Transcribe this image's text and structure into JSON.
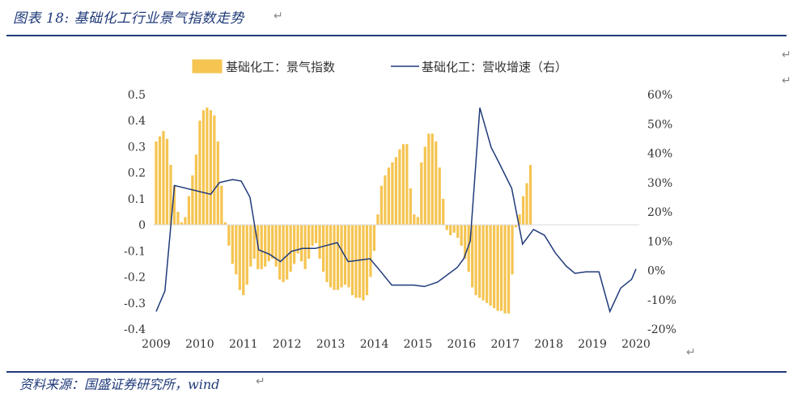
{
  "header": {
    "title": "图表 18:  基础化工行业景气指数走势"
  },
  "footer": {
    "source": "资料来源：国盛证券研究所，wind"
  },
  "colors": {
    "bar": "#f5c451",
    "line": "#1f3a7a",
    "accent": "#1f3a7a"
  },
  "chart_data": {
    "type": "bar+line",
    "title": "",
    "legend": [
      {
        "name": "基础化工：景气指数",
        "kind": "bar"
      },
      {
        "name": "基础化工：营收增速（右）",
        "kind": "line"
      }
    ],
    "legend_position": "top-center",
    "x_ticks": [
      "2009",
      "2010",
      "2011",
      "2012",
      "2013",
      "2014",
      "2015",
      "2016",
      "2017",
      "2018",
      "2019",
      "2020"
    ],
    "x_range": [
      2009,
      2020
    ],
    "y_left": {
      "ticks": [
        "0.5",
        "0.4",
        "0.3",
        "0.2",
        "0.1",
        "0",
        "-0.1",
        "-0.2",
        "-0.3",
        "-0.4"
      ],
      "range": [
        -0.4,
        0.5
      ]
    },
    "y_right": {
      "ticks": [
        "60%",
        "50%",
        "40%",
        "30%",
        "20%",
        "10%",
        "0%",
        "-10%",
        "-20%"
      ],
      "range": [
        -20,
        60
      ]
    },
    "series": [
      {
        "name": "基础化工：景气指数",
        "kind": "bar",
        "axis": "left",
        "x_start": 2009.0,
        "x_step": 0.0833,
        "values": [
          0.32,
          0.34,
          0.36,
          0.33,
          0.23,
          0.15,
          0.05,
          0.01,
          0.03,
          0.11,
          0.19,
          0.27,
          0.4,
          0.44,
          0.45,
          0.44,
          0.42,
          0.32,
          0.15,
          0.01,
          -0.08,
          -0.15,
          -0.19,
          -0.25,
          -0.27,
          -0.23,
          -0.16,
          -0.13,
          -0.17,
          -0.17,
          -0.16,
          -0.14,
          -0.13,
          -0.16,
          -0.21,
          -0.22,
          -0.21,
          -0.18,
          -0.15,
          -0.11,
          -0.14,
          -0.17,
          -0.13,
          -0.08,
          -0.07,
          -0.13,
          -0.18,
          -0.22,
          -0.24,
          -0.25,
          -0.25,
          -0.24,
          -0.23,
          -0.24,
          -0.27,
          -0.28,
          -0.28,
          -0.29,
          -0.27,
          -0.2,
          -0.1,
          0.04,
          0.15,
          0.19,
          0.22,
          0.24,
          0.26,
          0.29,
          0.31,
          0.31,
          0.14,
          0.04,
          0.03,
          0.24,
          0.3,
          0.35,
          0.35,
          0.32,
          0.22,
          0.1,
          -0.02,
          -0.04,
          -0.03,
          -0.05,
          -0.08,
          -0.13,
          -0.18,
          -0.24,
          -0.27,
          -0.28,
          -0.29,
          -0.3,
          -0.31,
          -0.32,
          -0.33,
          -0.33,
          -0.34,
          -0.34,
          -0.19,
          -0.01,
          0.04,
          0.11,
          0.16,
          0.23
        ]
      },
      {
        "name": "基础化工：营收增速（右）",
        "kind": "line",
        "axis": "right",
        "points": [
          [
            2009.0,
            -14
          ],
          [
            2009.2,
            -7
          ],
          [
            2009.42,
            29
          ],
          [
            2010.25,
            26
          ],
          [
            2010.45,
            30
          ],
          [
            2010.75,
            31
          ],
          [
            2010.95,
            30.5
          ],
          [
            2011.15,
            25
          ],
          [
            2011.35,
            7
          ],
          [
            2011.6,
            5.5
          ],
          [
            2011.85,
            3
          ],
          [
            2012.1,
            6.5
          ],
          [
            2012.35,
            7.5
          ],
          [
            2012.65,
            7.5
          ],
          [
            2012.9,
            8.5
          ],
          [
            2013.15,
            9.5
          ],
          [
            2013.4,
            3
          ],
          [
            2013.9,
            4
          ],
          [
            2014.1,
            0.5
          ],
          [
            2014.4,
            -5
          ],
          [
            2014.9,
            -5
          ],
          [
            2015.15,
            -5.5
          ],
          [
            2015.45,
            -4
          ],
          [
            2015.9,
            1
          ],
          [
            2016.05,
            4
          ],
          [
            2016.2,
            10
          ],
          [
            2016.42,
            55.5
          ],
          [
            2016.68,
            42
          ],
          [
            2016.85,
            37
          ],
          [
            2017.15,
            28
          ],
          [
            2017.4,
            9
          ],
          [
            2017.65,
            14
          ],
          [
            2017.9,
            12
          ],
          [
            2018.15,
            6
          ],
          [
            2018.4,
            1.5
          ],
          [
            2018.6,
            -1
          ],
          [
            2018.85,
            -0.5
          ],
          [
            2019.15,
            -0.5
          ],
          [
            2019.4,
            -14
          ],
          [
            2019.65,
            -6
          ],
          [
            2019.9,
            -3
          ],
          [
            2020.0,
            0.5
          ]
        ]
      }
    ]
  }
}
